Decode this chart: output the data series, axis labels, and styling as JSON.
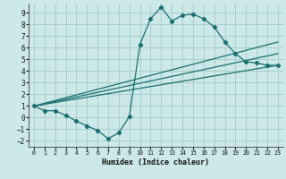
{
  "xlabel": "Humidex (Indice chaleur)",
  "background_color": "#cce8e8",
  "grid_color": "#aacece",
  "line_color": "#1a7070",
  "xlim": [
    -0.5,
    23.5
  ],
  "ylim": [
    -2.5,
    9.8
  ],
  "xticks": [
    0,
    1,
    2,
    3,
    4,
    5,
    6,
    7,
    8,
    9,
    10,
    11,
    12,
    13,
    14,
    15,
    16,
    17,
    18,
    19,
    20,
    21,
    22,
    23
  ],
  "yticks": [
    -2,
    -1,
    0,
    1,
    2,
    3,
    4,
    5,
    6,
    7,
    8,
    9
  ],
  "curve_x": [
    0,
    1,
    2,
    3,
    4,
    5,
    6,
    7,
    8,
    9,
    10,
    11,
    12,
    13,
    14,
    15,
    16,
    17,
    18,
    19,
    20,
    21,
    22,
    23
  ],
  "curve_y": [
    1.0,
    0.6,
    0.6,
    0.2,
    -0.3,
    -0.7,
    -1.1,
    -1.8,
    -1.3,
    0.1,
    6.3,
    8.5,
    9.5,
    8.3,
    8.8,
    8.9,
    8.5,
    7.8,
    6.5,
    5.5,
    4.8,
    4.7,
    4.5,
    4.5
  ],
  "line1_x": [
    0,
    23
  ],
  "line1_y": [
    1.0,
    4.5
  ],
  "line2_x": [
    0,
    23
  ],
  "line2_y": [
    1.0,
    5.5
  ],
  "line3_x": [
    0,
    23
  ],
  "line3_y": [
    1.0,
    6.5
  ]
}
